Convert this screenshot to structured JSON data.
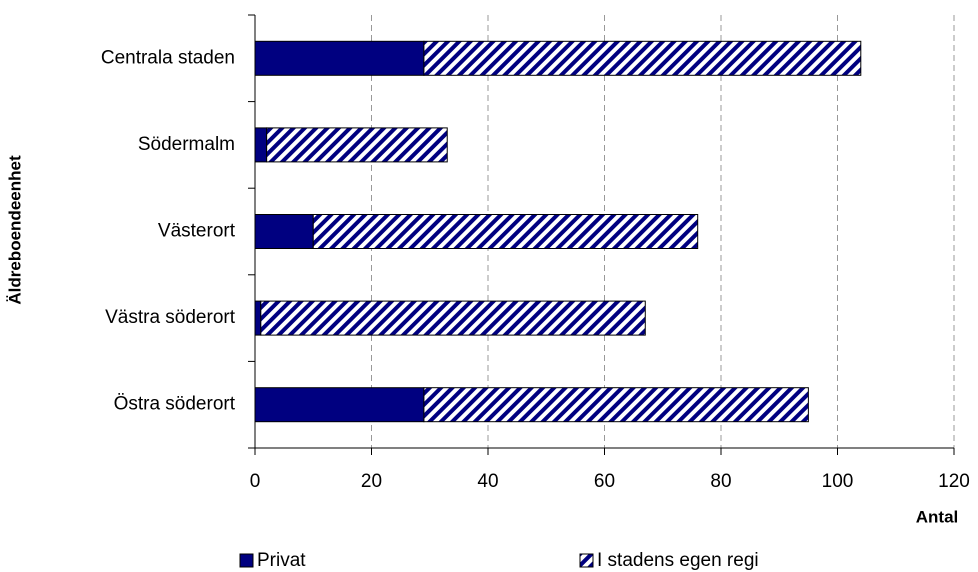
{
  "chart_data": {
    "type": "bar",
    "orientation": "horizontal",
    "stacked": true,
    "x_label": "Antal",
    "y_label": "Äldreboendeenhet",
    "categories": [
      "Centrala staden",
      "Södermalm",
      "Västerort",
      "Västra söderort",
      "Östra söderort"
    ],
    "series": [
      {
        "name": "Privat",
        "color": "#000080",
        "pattern": "solid",
        "values": [
          29,
          2,
          10,
          1,
          29
        ]
      },
      {
        "name": "I stadens egen regi",
        "color": "#000080",
        "pattern": "hatch",
        "values": [
          75,
          31,
          66,
          66,
          66
        ]
      }
    ],
    "xlim": [
      0,
      120
    ],
    "xticks": [
      0,
      20,
      40,
      60,
      80,
      100,
      120
    ],
    "grid": true,
    "legend": "bottom"
  }
}
